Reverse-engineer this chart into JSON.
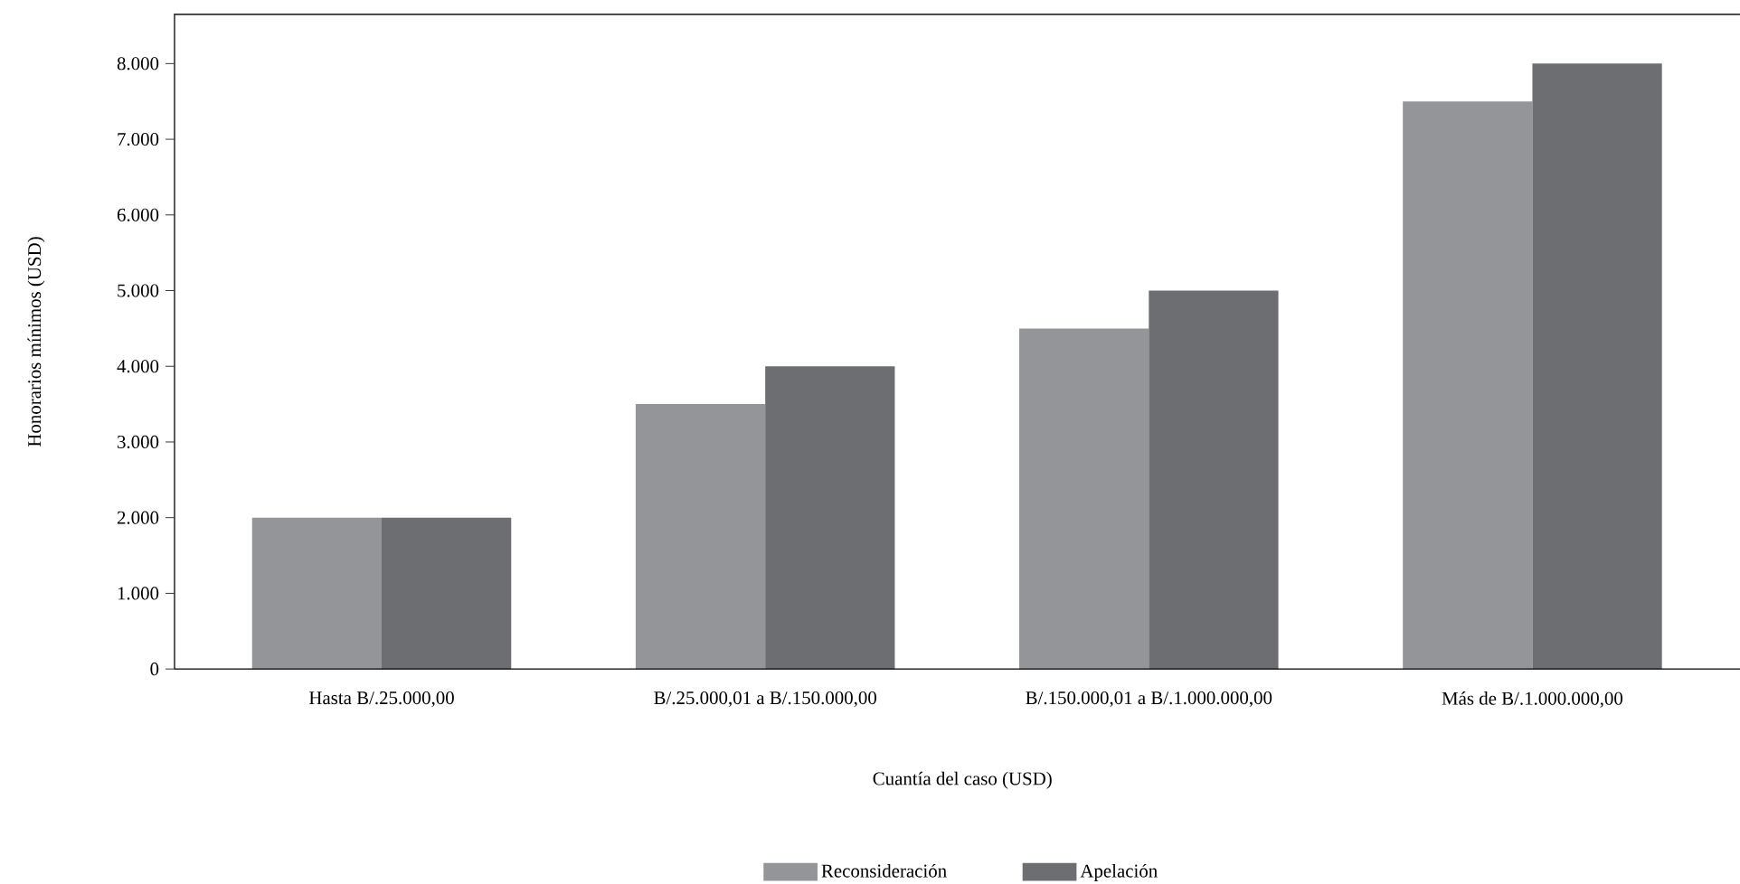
{
  "chart_data": {
    "type": "bar",
    "xlabel": "Cuantía del caso (USD)",
    "ylabel": "Honorarios mínimos (USD)",
    "categories": [
      "Hasta B/.25.000,00",
      "B/.25.000,01 a B/.150.000,00",
      "B/.150.000,01 a B/.1.000.000,00",
      "Más de B/.1.000.000,00"
    ],
    "series": [
      {
        "name": "Reconsideración",
        "color": "#939598",
        "values": [
          2000,
          3500,
          4500,
          7500
        ]
      },
      {
        "name": "Apelación",
        "color": "#6d6e71",
        "values": [
          2000,
          4000,
          5000,
          8000
        ]
      }
    ],
    "ylim": [
      0,
      8650
    ],
    "yticks": [
      0,
      {
        "value": 1000,
        "label": "1.000"
      },
      {
        "value": 2000,
        "label": "2.000"
      },
      {
        "value": 3000,
        "label": "3.000"
      },
      {
        "value": 4000,
        "label": "4.000"
      },
      {
        "value": 5000,
        "label": "5.000"
      },
      {
        "value": 6000,
        "label": "6.000"
      },
      {
        "value": 7000,
        "label": "7.000"
      },
      {
        "value": 8000,
        "label": "8.000"
      }
    ],
    "grid": false,
    "legend": "bottom"
  }
}
